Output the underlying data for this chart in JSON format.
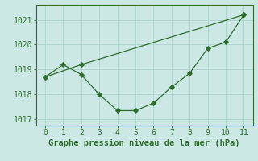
{
  "line1_x": [
    0,
    2,
    11
  ],
  "line1_y": [
    1018.7,
    1019.2,
    1021.2
  ],
  "line2_x": [
    0,
    1,
    2,
    3,
    4,
    5,
    6,
    7,
    8,
    9,
    10,
    11
  ],
  "line2_y": [
    1018.7,
    1019.2,
    1018.8,
    1018.0,
    1017.35,
    1017.35,
    1017.65,
    1018.3,
    1018.85,
    1019.85,
    1020.1,
    1021.2
  ],
  "line_color": "#2d6e2d",
  "bg_color": "#cce8e4",
  "grid_color": "#aed4d0",
  "xlabel": "Graphe pression niveau de la mer (hPa)",
  "xlim": [
    -0.5,
    11.5
  ],
  "ylim": [
    1016.75,
    1021.6
  ],
  "yticks": [
    1017,
    1018,
    1019,
    1020,
    1021
  ],
  "xticks": [
    0,
    1,
    2,
    3,
    4,
    5,
    6,
    7,
    8,
    9,
    10,
    11
  ],
  "xlabel_fontsize": 7.5,
  "tick_fontsize": 7
}
